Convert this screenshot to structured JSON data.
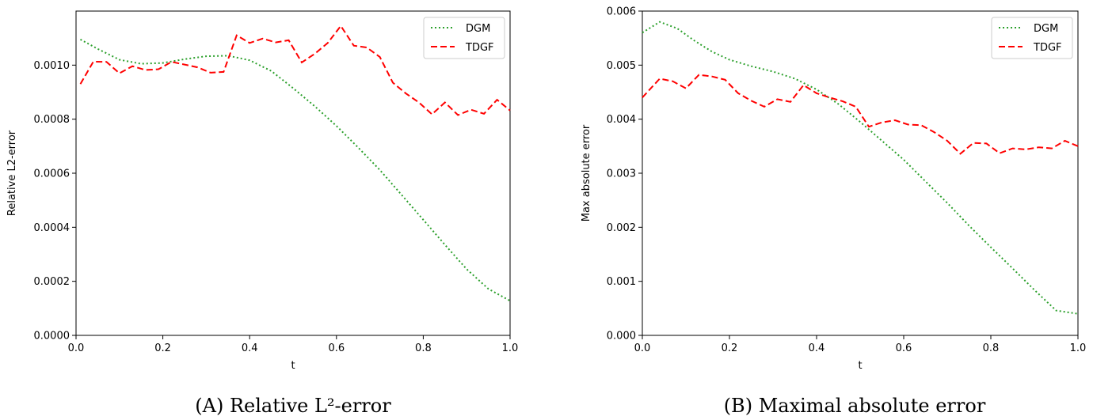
{
  "chart_data": [
    {
      "type": "line",
      "panel_label": "(A)",
      "caption": "Relative L²-error",
      "xlabel": "t",
      "ylabel": "Relative L2-error",
      "xlim": [
        0.0,
        1.0
      ],
      "ylim": [
        0.0,
        0.0012
      ],
      "xticks": [
        0.0,
        0.2,
        0.4,
        0.6,
        0.8,
        1.0
      ],
      "xtick_labels": [
        "0.0",
        "0.2",
        "0.4",
        "0.6",
        "0.8",
        "1.0"
      ],
      "yticks": [
        0.0,
        0.0002,
        0.0004,
        0.0006,
        0.0008,
        0.001
      ],
      "ytick_labels": [
        "0.0000",
        "0.0002",
        "0.0004",
        "0.0006",
        "0.0008",
        "0.0010"
      ],
      "legend_position": "top-right",
      "series": [
        {
          "name": "DGM",
          "color": "#2ca02c",
          "style": "dotted",
          "x": [
            0.01,
            0.05,
            0.1,
            0.15,
            0.2,
            0.25,
            0.3,
            0.35,
            0.4,
            0.45,
            0.5,
            0.55,
            0.6,
            0.65,
            0.7,
            0.75,
            0.8,
            0.85,
            0.9,
            0.95,
            1.0
          ],
          "y": [
            0.001095,
            0.00106,
            0.00102,
            0.001005,
            0.001008,
            0.001022,
            0.001033,
            0.001035,
            0.001018,
            0.000978,
            0.000915,
            0.000848,
            0.000775,
            0.000695,
            0.000612,
            0.00052,
            0.000428,
            0.000335,
            0.000245,
            0.000172,
            0.000128
          ]
        },
        {
          "name": "TDGF",
          "color": "#ff0000",
          "style": "dashed",
          "x": [
            0.01,
            0.04,
            0.07,
            0.1,
            0.13,
            0.16,
            0.19,
            0.22,
            0.25,
            0.28,
            0.31,
            0.34,
            0.37,
            0.4,
            0.43,
            0.46,
            0.49,
            0.52,
            0.55,
            0.58,
            0.61,
            0.64,
            0.67,
            0.7,
            0.73,
            0.76,
            0.79,
            0.82,
            0.85,
            0.88,
            0.91,
            0.94,
            0.97,
            1.0
          ],
          "y": [
            0.00093,
            0.001013,
            0.001012,
            0.00097,
            0.000996,
            0.000982,
            0.000985,
            0.001012,
            0.001002,
            0.000992,
            0.000972,
            0.000975,
            0.00111,
            0.001082,
            0.001098,
            0.001084,
            0.001092,
            0.00101,
            0.001042,
            0.001082,
            0.001145,
            0.001072,
            0.001065,
            0.00103,
            0.000935,
            0.000895,
            0.000862,
            0.000818,
            0.000862,
            0.000815,
            0.000835,
            0.00082,
            0.000872,
            0.000832
          ]
        }
      ]
    },
    {
      "type": "line",
      "panel_label": "(B)",
      "caption": "Maximal absolute error",
      "xlabel": "t",
      "ylabel": "Max absolute error",
      "xlim": [
        0.0,
        1.0
      ],
      "ylim": [
        0.0,
        0.006
      ],
      "xticks": [
        0.0,
        0.2,
        0.4,
        0.6,
        0.8,
        1.0
      ],
      "xtick_labels": [
        "0.0",
        "0.2",
        "0.4",
        "0.6",
        "0.8",
        "1.0"
      ],
      "yticks": [
        0.0,
        0.001,
        0.002,
        0.003,
        0.004,
        0.005,
        0.006
      ],
      "ytick_labels": [
        "0.000",
        "0.001",
        "0.002",
        "0.003",
        "0.004",
        "0.005",
        "0.006"
      ],
      "legend_position": "top-right",
      "series": [
        {
          "name": "DGM",
          "color": "#2ca02c",
          "style": "dotted",
          "x": [
            0.0,
            0.04,
            0.08,
            0.12,
            0.16,
            0.2,
            0.25,
            0.3,
            0.35,
            0.4,
            0.45,
            0.5,
            0.55,
            0.6,
            0.65,
            0.7,
            0.75,
            0.8,
            0.85,
            0.9,
            0.95,
            1.0
          ],
          "y": [
            0.0056,
            0.0058,
            0.00568,
            0.00545,
            0.00525,
            0.0051,
            0.00498,
            0.00488,
            0.00475,
            0.00455,
            0.00428,
            0.00395,
            0.0036,
            0.00325,
            0.00285,
            0.00245,
            0.00203,
            0.00163,
            0.00124,
            0.00084,
            0.00046,
            0.0004
          ]
        },
        {
          "name": "TDGF",
          "color": "#ff0000",
          "style": "dashed",
          "x": [
            0.0,
            0.04,
            0.07,
            0.1,
            0.13,
            0.16,
            0.19,
            0.22,
            0.25,
            0.28,
            0.31,
            0.34,
            0.37,
            0.4,
            0.43,
            0.46,
            0.49,
            0.52,
            0.55,
            0.58,
            0.61,
            0.64,
            0.67,
            0.7,
            0.73,
            0.76,
            0.79,
            0.82,
            0.85,
            0.88,
            0.91,
            0.94,
            0.97,
            1.0
          ],
          "y": [
            0.0044,
            0.00475,
            0.0047,
            0.00457,
            0.00482,
            0.00479,
            0.00473,
            0.00448,
            0.00434,
            0.00423,
            0.00437,
            0.00432,
            0.00463,
            0.00448,
            0.0044,
            0.00433,
            0.00423,
            0.00386,
            0.00394,
            0.00398,
            0.0039,
            0.00389,
            0.00376,
            0.0036,
            0.00336,
            0.00356,
            0.00355,
            0.00337,
            0.00346,
            0.00344,
            0.00348,
            0.00346,
            0.0036,
            0.0035
          ]
        }
      ]
    }
  ]
}
